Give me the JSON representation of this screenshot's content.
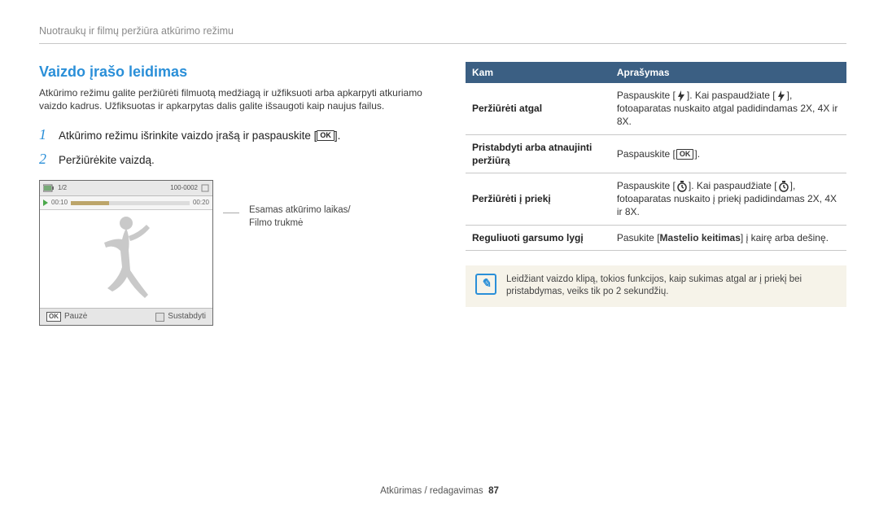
{
  "header": "Nuotraukų ir filmų peržiūra atkūrimo režimu",
  "section_title": "Vaizdo įrašo leidimas",
  "intro": "Atkūrimo režimu galite peržiūrėti filmuotą medžiagą ir užfiksuoti arba apkarpyti atkuriamo vaizdo kadrus. Užfiksuotas ir apkarpytas dalis galite išsaugoti kaip naujus failus.",
  "steps": {
    "s1_pre": "Atkūrimo režimu išrinkite vaizdo įrašą ir paspauskite [",
    "s1_post": "].",
    "s2": "Peržiūrėkite vaizdą."
  },
  "step_num_1": "1",
  "step_num_2": "2",
  "ok_label": "OK",
  "player": {
    "top_counter": "1/2",
    "top_right": "100-0002",
    "time_left": "00:10",
    "time_right": "00:20",
    "pause_label": "Pauzė",
    "stop_label": "Sustabdyti"
  },
  "callout": {
    "line1": "Esamas atkūrimo laikas/",
    "line2": "Filmo trukmė"
  },
  "table": {
    "header_left": "Kam",
    "header_right": "Aprašymas",
    "rows": [
      {
        "left": "Peržiūrėti atgal",
        "right_pre": "Paspauskite [",
        "right_icon": "flash",
        "right_mid": "]. Kai paspaudžiate [",
        "right_post": "], fotoaparatas nuskaito atgal padidindamas 2X, 4X ir 8X."
      },
      {
        "left": "Pristabdyti arba atnaujinti peržiūrą",
        "right_pre": "Paspauskite [",
        "right_icon": "ok",
        "right_mid": "",
        "right_post": "]."
      },
      {
        "left": "Peržiūrėti į priekį",
        "right_pre": "Paspauskite [",
        "right_icon": "timer",
        "right_mid": "]. Kai paspaudžiate [",
        "right_post": "], fotoaparatas nuskaito į priekį padidindamas 2X, 4X ir 8X."
      }
    ],
    "row4_left": "Reguliuoti garsumo lygį",
    "row4_pre": "Pasukite [",
    "row4_bold": "Mastelio keitimas",
    "row4_post": "] į kairę arba dešinę."
  },
  "note": "Leidžiant vaizdo klipą, tokios funkcijos, kaip sukimas atgal ar į priekį bei pristabdymas, veiks tik po 2 sekundžių.",
  "footer_text": "Atkūrimas / redagavimas",
  "footer_page": "87"
}
